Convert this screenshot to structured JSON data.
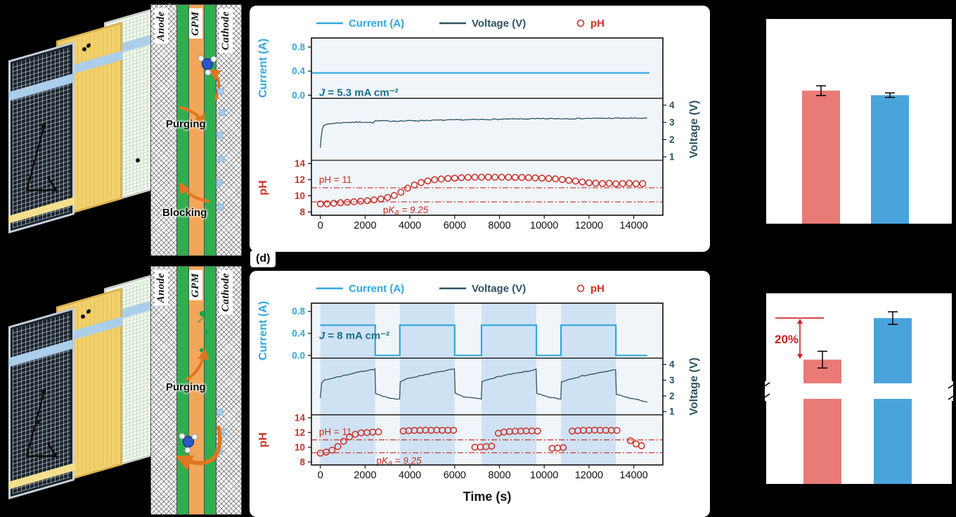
{
  "figure": {
    "panel_label_d": "(d)",
    "colors": {
      "current": "#2fa8e0",
      "voltage": "#2e5362",
      "ph": "#cb2f27",
      "annotation": "#18708f",
      "band": "#cfe2f3",
      "plot_bg": "#f0f5fa",
      "bar_red": "#e87b76",
      "bar_blue": "#4aa4dc",
      "diff_red": "#cc1f1f"
    },
    "schematic_top": {
      "anode": "Anode",
      "gpm": "GPM",
      "cathode": "Cathode",
      "purging": "Purging",
      "blocking": "Blocking"
    },
    "schematic_bottom": {
      "anode": "Anode",
      "gpm": "GPM",
      "cathode": "Cathode",
      "purging": "Purging"
    }
  },
  "chart_data": [
    {
      "id": "constant-current-experiment",
      "type": "line",
      "legend": [
        {
          "label": "Current (A)",
          "marker": "line",
          "color_key": "current"
        },
        {
          "label": "Voltage (V)",
          "marker": "line",
          "color_key": "voltage"
        },
        {
          "label": "pH",
          "marker": "circle",
          "color_key": "ph"
        }
      ],
      "x": {
        "range": [
          -400,
          15300
        ],
        "ticks": [
          0,
          2000,
          4000,
          6000,
          8000,
          10000,
          12000,
          14000
        ],
        "label": null
      },
      "subplots": [
        {
          "name": "current",
          "kind": "line",
          "ylabel": "Current (A)",
          "color_key": "current",
          "yrange": [
            -0.05,
            0.95
          ],
          "yticks": [
            "0.0",
            "0.4",
            "0.8"
          ],
          "ytick_vals": [
            0.0,
            0.4,
            0.8
          ],
          "tick_side": "left",
          "line_width": 2.2,
          "annotation": {
            "italic": "J",
            "text": " = 5.3 mA cm⁻²",
            "x": -60,
            "y": -0.01
          },
          "series": [
            [
              -380,
              0.37
            ],
            [
              14700,
              0.37
            ]
          ]
        },
        {
          "name": "voltage",
          "kind": "line",
          "ylabel": "Voltage (V)",
          "color_key": "voltage",
          "yrange": [
            0.8,
            4.4
          ],
          "yticks": [
            "4",
            "3",
            "2",
            "1"
          ],
          "ytick_vals": [
            4,
            3,
            2,
            1
          ],
          "tick_side": "right",
          "line_width": 1.3,
          "jitter": 0.03,
          "series": [
            [
              0,
              1.55
            ],
            [
              40,
              2.2
            ],
            [
              90,
              2.6
            ],
            [
              150,
              2.8
            ],
            [
              300,
              2.9
            ],
            [
              600,
              2.95
            ],
            [
              1200,
              3.0
            ],
            [
              2000,
              3.02
            ],
            [
              2350,
              2.98
            ],
            [
              2450,
              3.08
            ],
            [
              3500,
              3.08
            ],
            [
              5000,
              3.12
            ],
            [
              7000,
              3.16
            ],
            [
              9000,
              3.2
            ],
            [
              11000,
              3.22
            ],
            [
              13000,
              3.24
            ],
            [
              14600,
              3.24
            ]
          ]
        },
        {
          "name": "ph",
          "kind": "scatter",
          "ylabel": "pH",
          "color_key": "ph",
          "yrange": [
            7.6,
            14.4
          ],
          "yticks": [
            "14",
            "12",
            "10",
            "8"
          ],
          "ytick_vals": [
            14,
            12,
            10,
            8
          ],
          "tick_side": "left",
          "hlines": [
            {
              "y": 11,
              "label": "pH = 11",
              "italic": false,
              "label_x": -60,
              "label_side": "above"
            },
            {
              "y": 9.25,
              "label": "pKa = 9.25",
              "italic": true,
              "label_x": 2800,
              "label_side": "below"
            }
          ],
          "points": [
            [
              0,
              9.0
            ],
            [
              300,
              9.02
            ],
            [
              600,
              9.08
            ],
            [
              900,
              9.15
            ],
            [
              1200,
              9.2
            ],
            [
              1500,
              9.27
            ],
            [
              1800,
              9.33
            ],
            [
              2100,
              9.4
            ],
            [
              2400,
              9.5
            ],
            [
              2700,
              9.62
            ],
            [
              3000,
              9.8
            ],
            [
              3300,
              10.05
            ],
            [
              3600,
              10.45
            ],
            [
              3900,
              10.95
            ],
            [
              4200,
              11.35
            ],
            [
              4500,
              11.65
            ],
            [
              4800,
              11.85
            ],
            [
              5100,
              12.0
            ],
            [
              5400,
              12.08
            ],
            [
              5700,
              12.15
            ],
            [
              6000,
              12.2
            ],
            [
              6300,
              12.25
            ],
            [
              6600,
              12.28
            ],
            [
              6900,
              12.3
            ],
            [
              7200,
              12.3
            ],
            [
              7500,
              12.32
            ],
            [
              7800,
              12.3
            ],
            [
              8100,
              12.3
            ],
            [
              8400,
              12.3
            ],
            [
              8700,
              12.28
            ],
            [
              9000,
              12.27
            ],
            [
              9300,
              12.25
            ],
            [
              9600,
              12.22
            ],
            [
              9900,
              12.2
            ],
            [
              10200,
              12.15
            ],
            [
              10500,
              12.1
            ],
            [
              10800,
              12.02
            ],
            [
              11100,
              11.92
            ],
            [
              11400,
              11.82
            ],
            [
              11700,
              11.72
            ],
            [
              12000,
              11.62
            ],
            [
              12300,
              11.56
            ],
            [
              12600,
              11.52
            ],
            [
              12900,
              11.55
            ],
            [
              13200,
              11.5
            ],
            [
              13500,
              11.52
            ],
            [
              13800,
              11.55
            ],
            [
              14100,
              11.5
            ],
            [
              14400,
              11.52
            ]
          ]
        }
      ]
    },
    {
      "id": "pulsed-current-experiment",
      "type": "line",
      "legend": [
        {
          "label": "Current (A)",
          "marker": "line",
          "color_key": "current"
        },
        {
          "label": "Voltage (V)",
          "marker": "line",
          "color_key": "voltage"
        },
        {
          "label": "pH",
          "marker": "circle",
          "color_key": "ph"
        }
      ],
      "x": {
        "range": [
          -400,
          15300
        ],
        "ticks": [
          0,
          2000,
          4000,
          6000,
          8000,
          10000,
          12000,
          14000
        ],
        "label": "Time (s)"
      },
      "bands": [
        [
          0,
          2450
        ],
        [
          3550,
          6000
        ],
        [
          7200,
          9650
        ],
        [
          10750,
          13200
        ]
      ],
      "subplots": [
        {
          "name": "current",
          "kind": "line",
          "ylabel": "Current (A)",
          "color_key": "current",
          "yrange": [
            -0.05,
            0.95
          ],
          "yticks": [
            "0.0",
            "0.4",
            "0.8"
          ],
          "ytick_vals": [
            0.0,
            0.4,
            0.8
          ],
          "tick_side": "left",
          "line_width": 2.2,
          "annotation": {
            "italic": "J",
            "text": " = 8 mA cm⁻²",
            "x": -60,
            "y": 0.3
          },
          "series": [
            [
              0,
              0.55
            ],
            [
              2450,
              0.55
            ],
            [
              2450,
              0
            ],
            [
              3550,
              0
            ],
            [
              3550,
              0.55
            ],
            [
              6000,
              0.55
            ],
            [
              6000,
              0
            ],
            [
              7200,
              0
            ],
            [
              7200,
              0.55
            ],
            [
              9650,
              0.55
            ],
            [
              9650,
              0
            ],
            [
              10750,
              0
            ],
            [
              10750,
              0.55
            ],
            [
              13200,
              0.55
            ],
            [
              13200,
              0
            ],
            [
              14600,
              0
            ]
          ]
        },
        {
          "name": "voltage",
          "kind": "line",
          "ylabel": "Voltage (V)",
          "color_key": "voltage",
          "yrange": [
            0.8,
            4.4
          ],
          "yticks": [
            "4",
            "3",
            "2",
            "1"
          ],
          "ytick_vals": [
            4,
            3,
            2,
            1
          ],
          "tick_side": "right",
          "line_width": 1.3,
          "jitter": 0.03,
          "series": [
            [
              0,
              1.9
            ],
            [
              60,
              2.85
            ],
            [
              200,
              3.0
            ],
            [
              600,
              3.15
            ],
            [
              1200,
              3.35
            ],
            [
              1800,
              3.55
            ],
            [
              2440,
              3.7
            ],
            [
              2470,
              2.15
            ],
            [
              2800,
              1.95
            ],
            [
              3200,
              1.85
            ],
            [
              3540,
              1.8
            ],
            [
              3570,
              2.9
            ],
            [
              3900,
              3.1
            ],
            [
              4500,
              3.3
            ],
            [
              5200,
              3.5
            ],
            [
              5990,
              3.7
            ],
            [
              6020,
              2.15
            ],
            [
              6400,
              1.95
            ],
            [
              6900,
              1.85
            ],
            [
              7190,
              1.8
            ],
            [
              7220,
              2.9
            ],
            [
              7600,
              3.1
            ],
            [
              8200,
              3.3
            ],
            [
              9000,
              3.5
            ],
            [
              9640,
              3.68
            ],
            [
              9670,
              2.15
            ],
            [
              10100,
              1.95
            ],
            [
              10500,
              1.85
            ],
            [
              10740,
              1.8
            ],
            [
              10770,
              2.9
            ],
            [
              11200,
              3.1
            ],
            [
              11800,
              3.3
            ],
            [
              12600,
              3.5
            ],
            [
              13190,
              3.68
            ],
            [
              13220,
              2.1
            ],
            [
              13700,
              1.9
            ],
            [
              14200,
              1.75
            ],
            [
              14600,
              1.6
            ]
          ]
        },
        {
          "name": "ph",
          "kind": "scatter",
          "ylabel": "pH",
          "color_key": "ph",
          "yrange": [
            7.6,
            14.4
          ],
          "yticks": [
            "14",
            "12",
            "10",
            "8"
          ],
          "ytick_vals": [
            14,
            12,
            10,
            8
          ],
          "tick_side": "left",
          "hlines": [
            {
              "y": 11,
              "label": "pH = 11",
              "italic": false,
              "label_x": -60,
              "label_side": "above"
            },
            {
              "y": 9.25,
              "label": "pKa = 9.25",
              "italic": true,
              "label_x": 2500,
              "label_side": "below"
            }
          ],
          "points": [
            [
              0,
              9.2
            ],
            [
              260,
              9.35
            ],
            [
              520,
              9.6
            ],
            [
              780,
              10.1
            ],
            [
              1040,
              10.8
            ],
            [
              1300,
              11.4
            ],
            [
              1560,
              11.75
            ],
            [
              1820,
              11.95
            ],
            [
              2080,
              12.0
            ],
            [
              2340,
              12.05
            ],
            [
              2600,
              12.08
            ],
            [
              3700,
              12.2
            ],
            [
              3950,
              12.25
            ],
            [
              4200,
              12.28
            ],
            [
              4450,
              12.3
            ],
            [
              4700,
              12.33
            ],
            [
              4950,
              12.3
            ],
            [
              5200,
              12.33
            ],
            [
              5450,
              12.3
            ],
            [
              5700,
              12.3
            ],
            [
              5950,
              12.3
            ],
            [
              6900,
              10.0
            ],
            [
              7150,
              10.02
            ],
            [
              7400,
              10.08
            ],
            [
              7650,
              10.15
            ],
            [
              7950,
              11.9
            ],
            [
              8200,
              12.05
            ],
            [
              8450,
              12.12
            ],
            [
              8700,
              12.18
            ],
            [
              8950,
              12.2
            ],
            [
              9200,
              12.22
            ],
            [
              9450,
              12.22
            ],
            [
              9700,
              12.2
            ],
            [
              10350,
              9.85
            ],
            [
              10600,
              9.9
            ],
            [
              10850,
              9.95
            ],
            [
              11250,
              12.2
            ],
            [
              11500,
              12.25
            ],
            [
              11750,
              12.3
            ],
            [
              12000,
              12.3
            ],
            [
              12250,
              12.33
            ],
            [
              12500,
              12.3
            ],
            [
              12750,
              12.3
            ],
            [
              13000,
              12.3
            ],
            [
              13250,
              12.28
            ],
            [
              13850,
              10.9
            ],
            [
              14100,
              10.45
            ],
            [
              14350,
              10.2
            ]
          ]
        }
      ]
    },
    {
      "id": "bar-comparison-top",
      "type": "bar",
      "bars": [
        {
          "name": "red-bar",
          "color_key": "bar_red",
          "height_frac": 0.65,
          "err_frac": 0.024
        },
        {
          "name": "blue-bar",
          "color_key": "bar_blue",
          "height_frac": 0.628,
          "err_frac": 0.011
        }
      ]
    },
    {
      "id": "bar-comparison-bottom",
      "type": "bar",
      "broken_axis": true,
      "diff_label": "20%",
      "bars": [
        {
          "name": "red-bar",
          "color_key": "bar_red",
          "height_frac": 0.652,
          "err_frac": 0.044
        },
        {
          "name": "blue-bar",
          "color_key": "bar_blue",
          "height_frac": 0.87,
          "err_frac": 0.033
        }
      ]
    }
  ]
}
